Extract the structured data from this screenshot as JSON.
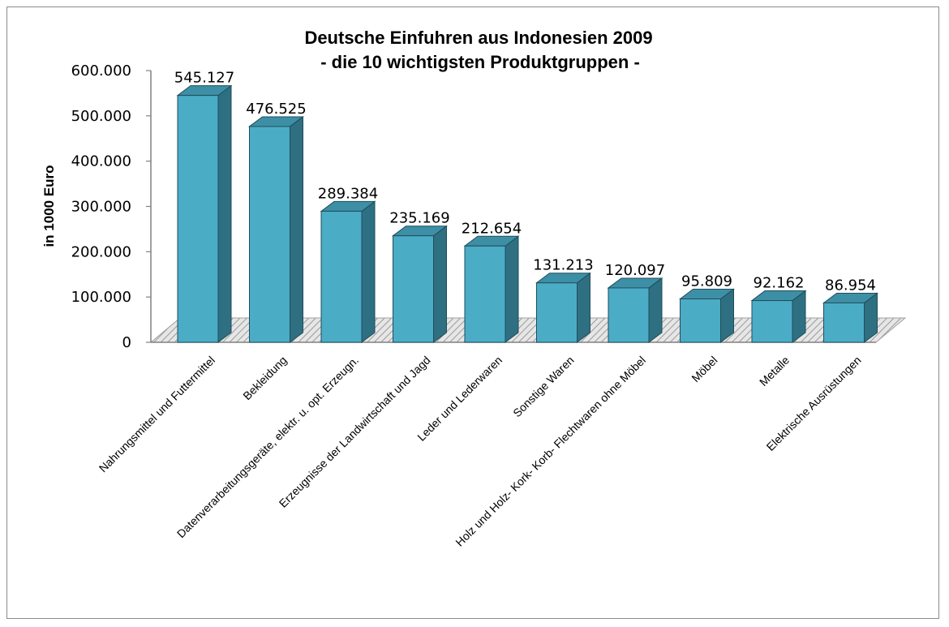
{
  "chart_data": {
    "type": "bar",
    "title_line1": "Deutsche Einfuhren aus Indonesien 2009",
    "title_line2": "- die 10 wichtigsten Produktgruppen -",
    "ylabel": "in 1000 Euro",
    "xlabel": "",
    "ylim": [
      0,
      600000
    ],
    "yticks": [
      "0",
      "100.000",
      "200.000",
      "300.000",
      "400.000",
      "500.000",
      "600.000"
    ],
    "grid": false,
    "legend": "none",
    "bar_color": "#4bacc6",
    "categories": [
      "Nahrungsmittel und Futtermittel",
      "Bekleidung",
      "Datenverarbeitungsgeräte, elektr. u. opt. Erzeugn.",
      "Erzeugnisse der Landwirtschaft und Jagd",
      "Leder und Lederwaren",
      "Sonstige Waren",
      "Holz und Holz- Kork- Korb- Flechtwaren ohne Möbel",
      "Möbel",
      "Metalle",
      "Elektrische Ausrüstungen"
    ],
    "values": [
      545127,
      476525,
      289384,
      235169,
      212654,
      131213,
      120097,
      95809,
      92162,
      86954
    ],
    "value_labels": [
      "545.127",
      "476.525",
      "289.384",
      "235.169",
      "212.654",
      "131.213",
      "120.097",
      "95.809",
      "92.162",
      "86.954"
    ]
  }
}
